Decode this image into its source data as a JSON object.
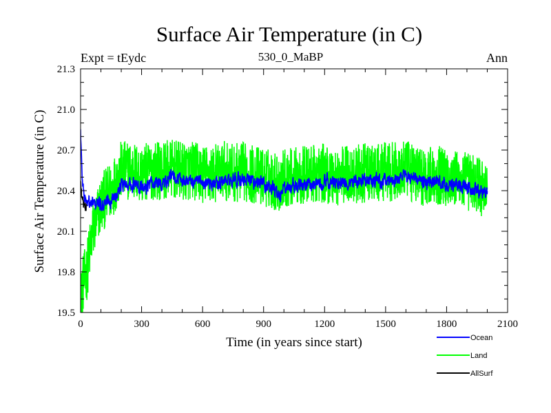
{
  "chart_data": {
    "type": "line",
    "title": "Surface Air Temperature (in C)",
    "left_header": "Expt = tEydc",
    "center_header": "530_0_MaBP",
    "right_header": "Ann",
    "xlabel": "Time (in years since start)",
    "ylabel": "Surface Air Temperature (in C)",
    "xlim": [
      0,
      2100
    ],
    "ylim": [
      19.5,
      21.3
    ],
    "x_ticks": [
      0,
      300,
      600,
      900,
      1200,
      1500,
      1800,
      2100
    ],
    "x_tick_labels": [
      "0",
      "300",
      "600",
      "900",
      "1200",
      "1500",
      "1800",
      "2100"
    ],
    "y_ticks": [
      19.5,
      19.8,
      20.1,
      20.4,
      20.7,
      21.0,
      21.3
    ],
    "y_tick_labels": [
      "19.5",
      "19.8",
      "20.1",
      "20.4",
      "20.7",
      "21.0",
      "21.3"
    ],
    "legend": {
      "placement": "below-right",
      "entries": [
        {
          "name": "Ocean",
          "color": "#0000ff"
        },
        {
          "name": "Land",
          "color": "#00ff00"
        },
        {
          "name": "AllSurf",
          "color": "#000000"
        }
      ]
    },
    "series": [
      {
        "name": "Land",
        "color": "#00ff00",
        "x": [
          0,
          10,
          20,
          30,
          40,
          50,
          60,
          80,
          100,
          125,
          150,
          175,
          200,
          250,
          300,
          350,
          400,
          450,
          500,
          550,
          600,
          650,
          700,
          750,
          800,
          850,
          900,
          950,
          975,
          1000,
          1050,
          1100,
          1150,
          1200,
          1250,
          1300,
          1350,
          1400,
          1450,
          1500,
          1550,
          1600,
          1650,
          1700,
          1750,
          1800,
          1850,
          1900,
          1950,
          1975,
          2000
        ],
        "values": [
          19.55,
          19.7,
          19.75,
          19.8,
          19.9,
          20.0,
          20.1,
          20.2,
          20.3,
          20.35,
          20.4,
          20.48,
          20.55,
          20.55,
          20.52,
          20.55,
          20.55,
          20.56,
          20.54,
          20.55,
          20.52,
          20.52,
          20.55,
          20.53,
          20.54,
          20.52,
          20.5,
          20.48,
          20.45,
          20.5,
          20.5,
          20.52,
          20.52,
          20.53,
          20.5,
          20.52,
          20.52,
          20.53,
          20.52,
          20.54,
          20.54,
          20.55,
          20.52,
          20.5,
          20.52,
          20.5,
          20.48,
          20.47,
          20.45,
          20.42,
          20.45
        ],
        "noise_amplitude": 0.22
      },
      {
        "name": "Ocean",
        "color": "#0000ff",
        "x": [
          0,
          5,
          10,
          20,
          30,
          50,
          75,
          100,
          150,
          200,
          250,
          300,
          350,
          400,
          450,
          500,
          550,
          600,
          650,
          700,
          750,
          800,
          850,
          900,
          950,
          975,
          1000,
          1050,
          1100,
          1150,
          1200,
          1250,
          1300,
          1350,
          1400,
          1450,
          1500,
          1550,
          1600,
          1650,
          1700,
          1750,
          1800,
          1850,
          1900,
          1950,
          2000
        ],
        "values": [
          20.85,
          20.6,
          20.45,
          20.35,
          20.32,
          20.3,
          20.3,
          20.3,
          20.33,
          20.45,
          20.45,
          20.42,
          20.45,
          20.45,
          20.5,
          20.48,
          20.47,
          20.45,
          20.45,
          20.47,
          20.47,
          20.48,
          20.47,
          20.45,
          20.42,
          20.35,
          20.42,
          20.43,
          20.45,
          20.45,
          20.47,
          20.45,
          20.45,
          20.47,
          20.48,
          20.47,
          20.48,
          20.48,
          20.5,
          20.48,
          20.45,
          20.47,
          20.45,
          20.44,
          20.42,
          20.4,
          20.4
        ],
        "noise_amplitude": 0.09
      },
      {
        "name": "AllSurf",
        "color": "#000000",
        "x": [
          0,
          5,
          10,
          15,
          20,
          25,
          30
        ],
        "values": [
          20.45,
          20.38,
          20.33,
          20.3,
          20.3,
          20.28,
          20.3
        ],
        "noise_amplitude": 0.04
      }
    ]
  }
}
